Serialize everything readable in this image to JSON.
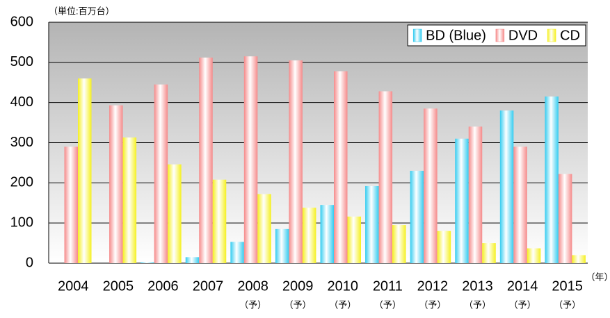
{
  "chart_data": {
    "type": "bar",
    "ylabel": "（単位:百万台）",
    "xlabel": "（年）",
    "categories": [
      "2004",
      "2005",
      "2006",
      "2007",
      "2008",
      "2009",
      "2010",
      "2011",
      "2012",
      "2013",
      "2014",
      "2015"
    ],
    "category_notes": [
      null,
      null,
      null,
      null,
      "（予）",
      "（予）",
      "（予）",
      "（予）",
      "（予）",
      "（予）",
      "（予）",
      "（予）"
    ],
    "series": [
      {
        "name": "BD (Blue)",
        "color": "#33ccf0",
        "values": [
          0,
          0,
          2,
          15,
          53,
          85,
          145,
          192,
          230,
          310,
          380,
          415
        ]
      },
      {
        "name": "DVD",
        "color": "#f58a8a",
        "values": [
          290,
          393,
          445,
          512,
          515,
          505,
          478,
          428,
          385,
          340,
          290,
          222
        ]
      },
      {
        "name": "CD",
        "color": "#f5f020",
        "values": [
          460,
          313,
          246,
          208,
          172,
          138,
          116,
          95,
          80,
          50,
          37,
          20
        ]
      }
    ],
    "ylim": [
      0,
      600
    ],
    "yticks": [
      0,
      100,
      200,
      300,
      400,
      500,
      600
    ],
    "grid": true,
    "legend": "top-right"
  }
}
